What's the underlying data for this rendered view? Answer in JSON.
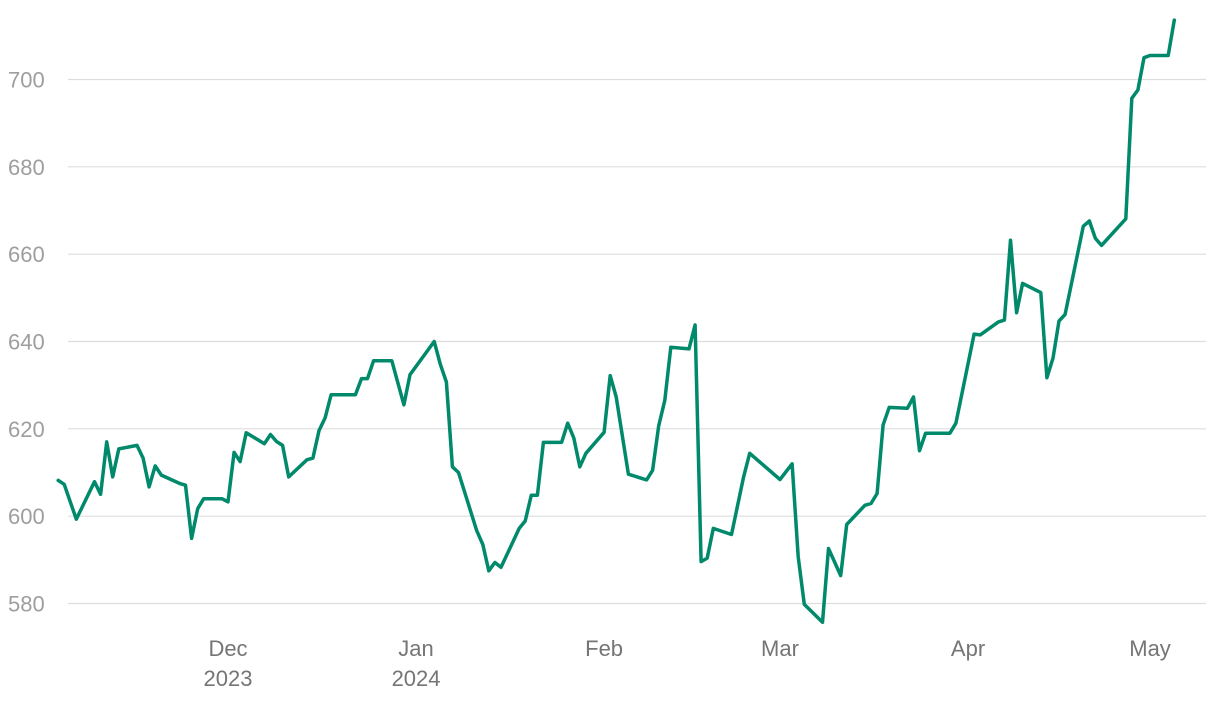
{
  "chart_data": {
    "type": "line",
    "title": "",
    "xlabel": "",
    "ylabel": "",
    "ylim": [
      574,
      715
    ],
    "xlim": [
      "2023-11-01",
      "2024-05-10"
    ],
    "grid": "horizontal",
    "legend": "none",
    "colors": {
      "line": "#00896b",
      "grid": "#dddddd",
      "ytick": "#9e9e9e",
      "xtick": "#757575"
    },
    "y_ticks": [
      {
        "value": 580,
        "label": "580"
      },
      {
        "value": 600,
        "label": "600"
      },
      {
        "value": 620,
        "label": "620"
      },
      {
        "value": 640,
        "label": "640"
      },
      {
        "value": 660,
        "label": "660"
      },
      {
        "value": 680,
        "label": "680"
      },
      {
        "value": 700,
        "label": "700"
      }
    ],
    "x_ticks": [
      {
        "date": "2023-12-01",
        "line1": "Dec",
        "line2": "2023"
      },
      {
        "date": "2024-01-01",
        "line1": "Jan",
        "line2": "2024"
      },
      {
        "date": "2024-02-01",
        "line1": "Feb",
        "line2": ""
      },
      {
        "date": "2024-03-01",
        "line1": "Mar",
        "line2": ""
      },
      {
        "date": "2024-04-01",
        "line1": "Apr",
        "line2": ""
      },
      {
        "date": "2024-05-01",
        "line1": "May",
        "line2": ""
      }
    ],
    "series": [
      {
        "points": [
          [
            "2023-11-03",
            608.2
          ],
          [
            "2023-11-04",
            607.3
          ],
          [
            "2023-11-06",
            599.3
          ],
          [
            "2023-11-09",
            607.9
          ],
          [
            "2023-11-10",
            605.0
          ],
          [
            "2023-11-11",
            617.0
          ],
          [
            "2023-11-12",
            609.0
          ],
          [
            "2023-11-13",
            615.4
          ],
          [
            "2023-11-16",
            616.2
          ],
          [
            "2023-11-17",
            613.3
          ],
          [
            "2023-11-18",
            606.7
          ],
          [
            "2023-11-19",
            611.5
          ],
          [
            "2023-11-20",
            609.4
          ],
          [
            "2023-11-23",
            607.5
          ],
          [
            "2023-11-24",
            607.1
          ],
          [
            "2023-11-25",
            594.9
          ],
          [
            "2023-11-26",
            601.7
          ],
          [
            "2023-11-27",
            604.0
          ],
          [
            "2023-11-30",
            604.0
          ],
          [
            "2023-12-01",
            603.3
          ],
          [
            "2023-12-02",
            614.6
          ],
          [
            "2023-12-03",
            612.5
          ],
          [
            "2023-12-04",
            619.1
          ],
          [
            "2023-12-07",
            616.6
          ],
          [
            "2023-12-08",
            618.7
          ],
          [
            "2023-12-09",
            617.1
          ],
          [
            "2023-12-10",
            616.2
          ],
          [
            "2023-12-11",
            609.0
          ],
          [
            "2023-12-14",
            612.9
          ],
          [
            "2023-12-15",
            613.3
          ],
          [
            "2023-12-16",
            619.6
          ],
          [
            "2023-12-17",
            622.5
          ],
          [
            "2023-12-18",
            627.8
          ],
          [
            "2023-12-22",
            627.8
          ],
          [
            "2023-12-23",
            631.5
          ],
          [
            "2023-12-24",
            631.5
          ],
          [
            "2023-12-25",
            635.6
          ],
          [
            "2023-12-28",
            635.6
          ],
          [
            "2023-12-30",
            625.5
          ],
          [
            "2023-12-31",
            632.4
          ],
          [
            "2024-01-04",
            640.0
          ],
          [
            "2024-01-05",
            634.8
          ],
          [
            "2024-01-06",
            630.7
          ],
          [
            "2024-01-07",
            611.3
          ],
          [
            "2024-01-08",
            610.0
          ],
          [
            "2024-01-11",
            596.7
          ],
          [
            "2024-01-12",
            593.5
          ],
          [
            "2024-01-13",
            587.5
          ],
          [
            "2024-01-14",
            589.4
          ],
          [
            "2024-01-15",
            588.3
          ],
          [
            "2024-01-18",
            597.2
          ],
          [
            "2024-01-19",
            598.9
          ],
          [
            "2024-01-20",
            604.8
          ],
          [
            "2024-01-21",
            604.8
          ],
          [
            "2024-01-22",
            616.9
          ],
          [
            "2024-01-25",
            616.9
          ],
          [
            "2024-01-26",
            621.3
          ],
          [
            "2024-01-27",
            617.9
          ],
          [
            "2024-01-28",
            611.3
          ],
          [
            "2024-01-29",
            614.4
          ],
          [
            "2024-02-01",
            619.2
          ],
          [
            "2024-02-02",
            632.2
          ],
          [
            "2024-02-03",
            627.3
          ],
          [
            "2024-02-05",
            609.6
          ],
          [
            "2024-02-08",
            608.3
          ],
          [
            "2024-02-09",
            610.5
          ],
          [
            "2024-02-10",
            620.7
          ],
          [
            "2024-02-11",
            626.5
          ],
          [
            "2024-02-12",
            638.7
          ],
          [
            "2024-02-15",
            638.3
          ],
          [
            "2024-02-16",
            643.8
          ],
          [
            "2024-02-17",
            589.6
          ],
          [
            "2024-02-18",
            590.4
          ],
          [
            "2024-02-19",
            597.2
          ],
          [
            "2024-02-22",
            595.8
          ],
          [
            "2024-02-24",
            609.0
          ],
          [
            "2024-02-25",
            614.4
          ],
          [
            "2024-03-01",
            608.4
          ],
          [
            "2024-03-03",
            612.0
          ],
          [
            "2024-03-04",
            590.7
          ],
          [
            "2024-03-05",
            579.8
          ],
          [
            "2024-03-08",
            575.7
          ],
          [
            "2024-03-09",
            592.6
          ],
          [
            "2024-03-11",
            586.4
          ],
          [
            "2024-03-12",
            598.1
          ],
          [
            "2024-03-15",
            602.5
          ],
          [
            "2024-03-16",
            602.9
          ],
          [
            "2024-03-17",
            605.2
          ],
          [
            "2024-03-18",
            620.9
          ],
          [
            "2024-03-19",
            624.9
          ],
          [
            "2024-03-22",
            624.7
          ],
          [
            "2024-03-23",
            627.3
          ],
          [
            "2024-03-24",
            615.0
          ],
          [
            "2024-03-25",
            619.0
          ],
          [
            "2024-03-29",
            619.0
          ],
          [
            "2024-03-30",
            621.3
          ],
          [
            "2024-04-02",
            641.7
          ],
          [
            "2024-04-03",
            641.5
          ],
          [
            "2024-04-06",
            644.5
          ],
          [
            "2024-04-07",
            644.9
          ],
          [
            "2024-04-08",
            663.2
          ],
          [
            "2024-04-09",
            646.6
          ],
          [
            "2024-04-10",
            653.3
          ],
          [
            "2024-04-13",
            651.2
          ],
          [
            "2024-04-14",
            631.7
          ],
          [
            "2024-04-15",
            636.2
          ],
          [
            "2024-04-16",
            644.7
          ],
          [
            "2024-04-17",
            646.2
          ],
          [
            "2024-04-20",
            666.4
          ],
          [
            "2024-04-21",
            667.6
          ],
          [
            "2024-04-22",
            663.6
          ],
          [
            "2024-04-23",
            662.0
          ],
          [
            "2024-04-27",
            668.1
          ],
          [
            "2024-04-28",
            695.7
          ],
          [
            "2024-04-29",
            697.6
          ],
          [
            "2024-04-30",
            705.0
          ],
          [
            "2024-05-01",
            705.5
          ],
          [
            "2024-05-04",
            705.5
          ],
          [
            "2024-05-05",
            713.6
          ]
        ]
      }
    ]
  }
}
